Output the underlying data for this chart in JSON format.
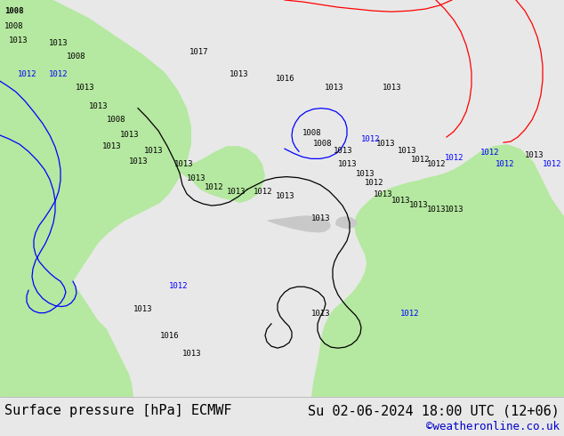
{
  "title_left": "Surface pressure [hPa] ECMWF",
  "title_right": "Su 02-06-2024 18:00 UTC (12+06)",
  "credit": "©weatheronline.co.uk",
  "bg_color": "#e8e8e8",
  "map_bg_color": "#d8d8d8",
  "land_green_color": "#b5e8a0",
  "land_gray_color": "#c8c8c8",
  "ocean_color": "#d8e8f0",
  "contour_black_color": "#000000",
  "contour_blue_color": "#0000ff",
  "contour_red_color": "#ff0000",
  "label_black_color": "#000000",
  "label_blue_color": "#0000cc",
  "bottom_bar_color": "#f0f0f0",
  "font_size_title": 11,
  "font_size_credit": 9,
  "fig_width": 6.34,
  "fig_height": 4.9,
  "dpi": 100
}
